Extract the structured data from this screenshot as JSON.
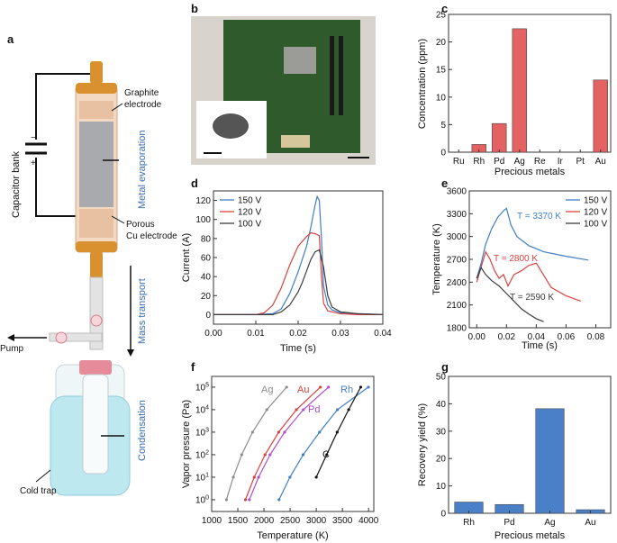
{
  "panel_letters": [
    "a",
    "b",
    "c",
    "d",
    "e",
    "f",
    "g"
  ],
  "panel_a": {
    "capacitor_label": "Capacitor bank",
    "plus": "+",
    "minus": "−",
    "graphite_label_1": "Graphite",
    "graphite_label_2": "electrode",
    "porous_label_1": "Porous",
    "porous_label_2": "Cu electrode",
    "metal_evaporation": "Metal evaporation",
    "mass_transport": "Mass transport",
    "condensation": "Condensation",
    "pump": "Pump",
    "cold_trap": "Cold trap",
    "colors": {
      "electrode": "#d9902e",
      "tube": "#b9b9b9",
      "blue_text": "#3a6db3",
      "trap": "#bde8f0",
      "cap": "#e58b9a"
    }
  },
  "chart_data": [
    {
      "id": "c",
      "type": "bar",
      "categories": [
        "Ru",
        "Rh",
        "Pd",
        "Ag",
        "Re",
        "Ir",
        "Pt",
        "Au"
      ],
      "values": [
        0,
        1.4,
        5.2,
        22.4,
        0,
        0,
        0,
        13.1
      ],
      "xlabel": "Precious metals",
      "ylabel": "Concentration (ppm)",
      "ylim": [
        0,
        25
      ],
      "yticks": [
        0,
        5,
        10,
        15,
        20,
        25
      ],
      "color": "#e46262"
    },
    {
      "id": "d",
      "type": "line",
      "xlabel": "Time (s)",
      "ylabel": "Current (A)",
      "xlim": [
        0,
        0.04
      ],
      "ylim": [
        -10,
        130
      ],
      "xticks": [
        0.0,
        0.01,
        0.02,
        0.03,
        0.04
      ],
      "xtick_labels": [
        "0.00",
        "0.01",
        "0.02",
        "0.03",
        "0.04"
      ],
      "yticks": [
        0,
        20,
        40,
        60,
        80,
        100,
        120
      ],
      "legend": "top-left",
      "series": [
        {
          "name": "150 V",
          "color": "#3f7ec4",
          "x": [
            0,
            0.005,
            0.01,
            0.014,
            0.016,
            0.018,
            0.02,
            0.022,
            0.023,
            0.024,
            0.0245,
            0.025,
            0.0255,
            0.026,
            0.027,
            0.028,
            0.03,
            0.034,
            0.04
          ],
          "y": [
            0,
            0,
            0,
            1,
            6,
            22,
            45,
            72,
            92,
            115,
            124,
            120,
            80,
            30,
            10,
            5,
            2,
            1,
            0
          ]
        },
        {
          "name": "120 V",
          "color": "#d9413f",
          "x": [
            0,
            0.005,
            0.01,
            0.012,
            0.014,
            0.016,
            0.018,
            0.02,
            0.022,
            0.023,
            0.024,
            0.025,
            0.0255,
            0.026,
            0.027,
            0.03,
            0.034,
            0.04
          ],
          "y": [
            0,
            0,
            0,
            2,
            10,
            28,
            52,
            72,
            82,
            86,
            85,
            83,
            40,
            12,
            4,
            1,
            0,
            0
          ]
        },
        {
          "name": "100 V",
          "color": "#3c3c3c",
          "x": [
            0,
            0.005,
            0.01,
            0.014,
            0.016,
            0.018,
            0.02,
            0.021,
            0.022,
            0.023,
            0.024,
            0.025,
            0.026,
            0.027,
            0.028,
            0.03,
            0.034,
            0.04
          ],
          "y": [
            0,
            0,
            0,
            0,
            3,
            10,
            24,
            34,
            46,
            58,
            66,
            68,
            50,
            20,
            8,
            3,
            1,
            0
          ]
        }
      ]
    },
    {
      "id": "e",
      "type": "line",
      "xlabel": "Time (s)",
      "ylabel": "Temperature (K)",
      "xlim": [
        -0.005,
        0.09
      ],
      "ylim": [
        1800,
        3600
      ],
      "xticks": [
        0.0,
        0.02,
        0.04,
        0.06,
        0.08
      ],
      "xtick_labels": [
        "0.00",
        "0.02",
        "0.04",
        "0.06",
        "0.08"
      ],
      "yticks": [
        1800,
        2100,
        2400,
        2700,
        3000,
        3300,
        3600
      ],
      "legend": "top-right",
      "annotations": [
        "T = 3370 K",
        "T = 2800 K",
        "T = 2590 K"
      ],
      "series": [
        {
          "name": "150 V",
          "color": "#3f7ec4",
          "x": [
            0,
            0.003,
            0.006,
            0.01,
            0.014,
            0.018,
            0.02,
            0.023,
            0.027,
            0.035,
            0.045,
            0.06,
            0.075
          ],
          "y": [
            2450,
            2650,
            2900,
            3100,
            3250,
            3340,
            3370,
            3150,
            3000,
            2880,
            2800,
            2740,
            2690
          ]
        },
        {
          "name": "120 V",
          "color": "#d9413f",
          "x": [
            0,
            0.003,
            0.006,
            0.009,
            0.012,
            0.015,
            0.018,
            0.021,
            0.025,
            0.03,
            0.035,
            0.04,
            0.05,
            0.06,
            0.07
          ],
          "y": [
            2400,
            2600,
            2800,
            2700,
            2550,
            2450,
            2500,
            2350,
            2500,
            2550,
            2620,
            2650,
            2330,
            2220,
            2150
          ]
        },
        {
          "name": "100 V",
          "color": "#3c3c3c",
          "x": [
            0,
            0.003,
            0.006,
            0.01,
            0.015,
            0.02,
            0.025,
            0.03,
            0.035,
            0.04,
            0.045
          ],
          "y": [
            2450,
            2590,
            2500,
            2420,
            2350,
            2250,
            2150,
            2050,
            1980,
            1920,
            1880
          ]
        }
      ]
    },
    {
      "id": "f",
      "type": "line",
      "xlabel": "Temperature (K)",
      "ylabel": "Vapor pressure (Pa)",
      "yscale": "log",
      "xlim": [
        1000,
        4100
      ],
      "ylim": [
        0.3,
        300000
      ],
      "xticks": [
        1000,
        1500,
        2000,
        2500,
        3000,
        3500,
        4000
      ],
      "ytick_labels": [
        "10^0",
        "10^1",
        "10^2",
        "10^3",
        "10^4",
        "10^5"
      ],
      "yticks": [
        1,
        10,
        100,
        1000,
        10000,
        100000
      ],
      "series": [
        {
          "name": "Ag",
          "color": "#8c8c8c",
          "x": [
            1283,
            1413,
            1575,
            1782,
            2055,
            2433
          ],
          "y": [
            1,
            10,
            100,
            1000,
            10000,
            100000
          ]
        },
        {
          "name": "Au",
          "color": "#d9413f",
          "x": [
            1646,
            1814,
            2021,
            2281,
            2620,
            3078
          ],
          "y": [
            1,
            10,
            100,
            1000,
            10000,
            100000
          ]
        },
        {
          "name": "Pd",
          "color": "#b04cc8",
          "x": [
            1721,
            1897,
            2117,
            2395,
            2753,
            3234
          ],
          "y": [
            1,
            10,
            100,
            1000,
            10000,
            100000
          ]
        },
        {
          "name": "Rh",
          "color": "#3f7ec4",
          "x": [
            2288,
            2496,
            2749,
            3063,
            3405,
            3997
          ],
          "y": [
            1,
            10,
            100,
            1000,
            10000,
            100000
          ]
        },
        {
          "name": "C",
          "color": "#111111",
          "x": [
            3000,
            3200,
            3400,
            3620,
            3850
          ],
          "y": [
            10,
            100,
            1000,
            10000,
            100000
          ]
        }
      ]
    },
    {
      "id": "g",
      "type": "bar",
      "categories": [
        "Rh",
        "Pd",
        "Ag",
        "Au"
      ],
      "values": [
        4.1,
        3.2,
        38.2,
        1.3
      ],
      "xlabel": "Precious metals",
      "ylabel": "Recovery yield (%)",
      "ylim": [
        0,
        50
      ],
      "yticks": [
        0,
        10,
        20,
        30,
        40,
        50
      ],
      "color": "#4a80c8"
    }
  ]
}
